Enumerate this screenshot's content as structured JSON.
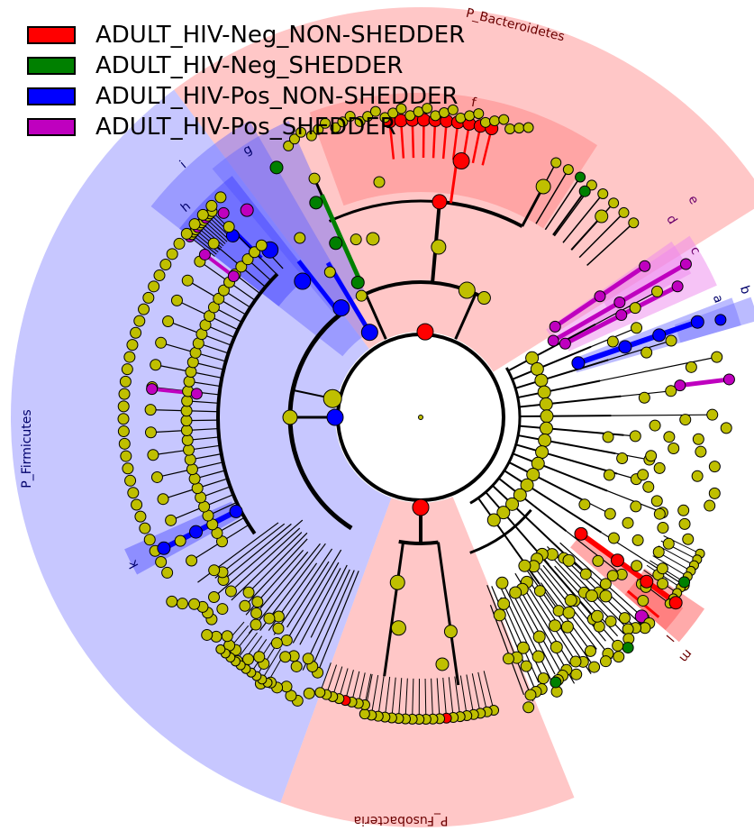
{
  "legend": [
    {
      "label": "ADULT_HIV-Neg_NON-SHEDDER",
      "color": "#ff0000"
    },
    {
      "label": "ADULT_HIV-Neg_SHEDDER",
      "color": "#008000"
    },
    {
      "label": "ADULT_HIV-Pos_NON-SHEDDER",
      "color": "#0000ff"
    },
    {
      "label": "ADULT_HIV-Pos_SHEDDER",
      "color": "#bf00bf"
    }
  ],
  "phyla": {
    "bacteroidetes": {
      "label": "P_Bacteroidetes",
      "color": "#ff0000"
    },
    "firmicutes": {
      "label": "P_Firmicutes",
      "color": "#0000ff"
    },
    "fusobacteria": {
      "label": "P_Fusobacteria",
      "color": "#ff0000"
    }
  },
  "clade_markers": {
    "a": "a",
    "b": "b",
    "c": "c",
    "d": "d",
    "e": "e",
    "f": "f",
    "g": "g",
    "h": "h",
    "i": "i",
    "k": "k",
    "l": "l",
    "m": "m"
  },
  "colors": {
    "node_default": "#bfbf00",
    "red": "#ff0000",
    "green": "#008000",
    "blue": "#0000ff",
    "magenta": "#bf00bf"
  }
}
